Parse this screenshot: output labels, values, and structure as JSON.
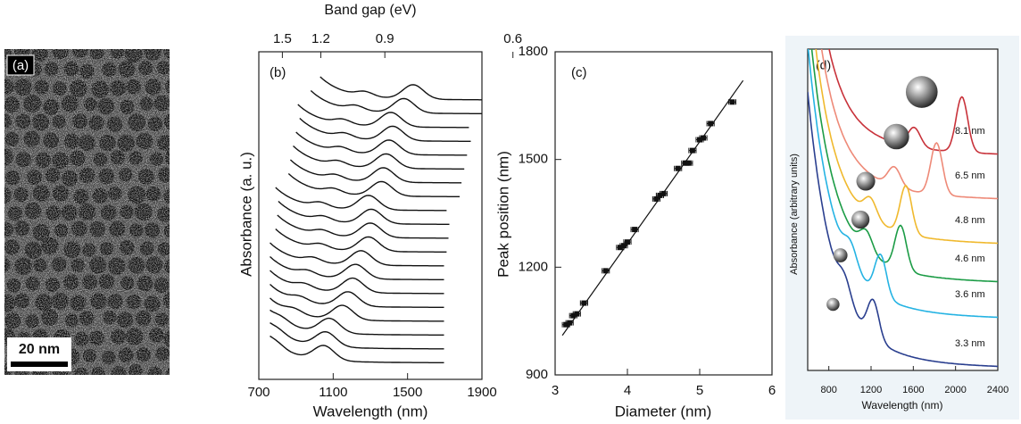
{
  "chart_data": [
    {
      "type": "image",
      "label": "(a)",
      "scale_bar": "20 nm"
    },
    {
      "type": "line",
      "label": "(b)",
      "xlabel": "Wavelength (nm)",
      "ylabel": "Absorbance (a. u.)",
      "x2label": "Band gap (eV)",
      "xlim": [
        700,
        1900
      ],
      "xticks": [
        700,
        1100,
        1500,
        1900
      ],
      "x2ticks": [
        1.5,
        1.2,
        0.9,
        0.6
      ],
      "color": "#111111",
      "peaks": [
        1530,
        1480,
        1410,
        1420,
        1400,
        1385,
        1370,
        1360,
        1290,
        1305,
        1300,
        1290,
        1250,
        1220,
        1205,
        1180,
        1150,
        1080,
        1060,
        1050
      ]
    },
    {
      "type": "scatter",
      "label": "(c)",
      "xlabel": "Diameter (nm)",
      "ylabel": "Peak position (nm)",
      "xlim": [
        3,
        6
      ],
      "ylim": [
        900,
        1800
      ],
      "xticks": [
        3,
        4,
        5,
        6
      ],
      "yticks": [
        900,
        1200,
        1500,
        1800
      ],
      "color": "#111111",
      "x": [
        3.15,
        3.2,
        3.25,
        3.3,
        3.4,
        3.7,
        3.9,
        3.95,
        4.0,
        4.1,
        4.4,
        4.45,
        4.5,
        4.7,
        4.8,
        4.85,
        4.9,
        5.0,
        5.05,
        5.15,
        5.45
      ],
      "values": [
        1040,
        1045,
        1065,
        1070,
        1100,
        1190,
        1255,
        1260,
        1270,
        1305,
        1390,
        1400,
        1405,
        1475,
        1490,
        1490,
        1525,
        1555,
        1560,
        1600,
        1660
      ],
      "xerr": [
        0.05,
        0.05,
        0.05,
        0.05,
        0.05,
        0.05,
        0.05,
        0.05,
        0.05,
        0.05,
        0.05,
        0.05,
        0.05,
        0.05,
        0.05,
        0.05,
        0.05,
        0.05,
        0.05,
        0.05,
        0.05
      ],
      "fit": {
        "x": [
          3.1,
          5.6
        ],
        "values": [
          1010,
          1720
        ]
      }
    },
    {
      "type": "line",
      "label": "(d)",
      "xlabel": "Wavelength (nm)",
      "ylabel": "Absorbance (arbitrary units)",
      "xlim": [
        600,
        2400
      ],
      "xticks": [
        800,
        1200,
        1600,
        2000,
        2400
      ],
      "series": [
        {
          "name": "8.1 nm",
          "color": "#c8323a",
          "peak": 2060
        },
        {
          "name": "6.5 nm",
          "color": "#ee8a78",
          "peak": 1820
        },
        {
          "name": "4.8 nm",
          "color": "#f0b92e",
          "peak": 1530
        },
        {
          "name": "4.6 nm",
          "color": "#1c9c46",
          "peak": 1480
        },
        {
          "name": "3.6 nm",
          "color": "#25b3e3",
          "peak": 1290
        },
        {
          "name": "3.3 nm",
          "color": "#2a3f8f",
          "peak": 1220
        }
      ]
    }
  ]
}
